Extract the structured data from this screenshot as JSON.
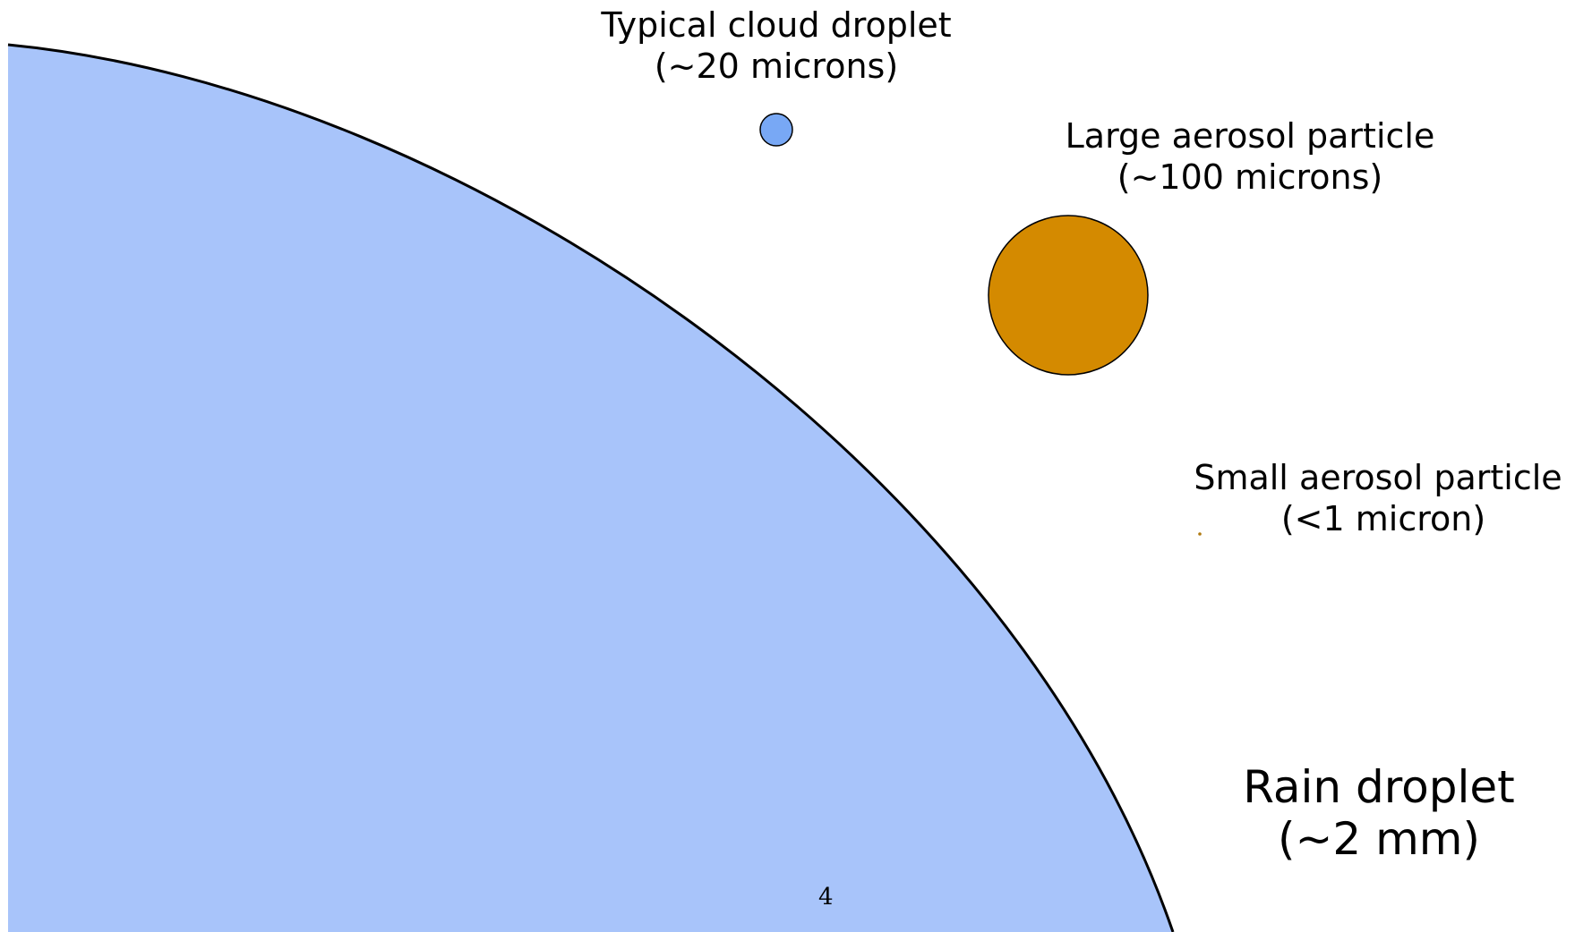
{
  "rain_droplet": {
    "title": "Rain droplet",
    "size": "(~2 mm)",
    "color": "#a8c4fa"
  },
  "cloud_droplet": {
    "title": "Typical cloud droplet",
    "size": "(~20 microns)",
    "color": "#78a8f5"
  },
  "large_aerosol": {
    "title": "Large aerosol particle",
    "size": "(~100 microns)",
    "color": "#d48a00"
  },
  "small_aerosol": {
    "title": "Small aerosol particle",
    "size": "(<1 micron)",
    "color": "#b07a10"
  },
  "slide_number": "4"
}
